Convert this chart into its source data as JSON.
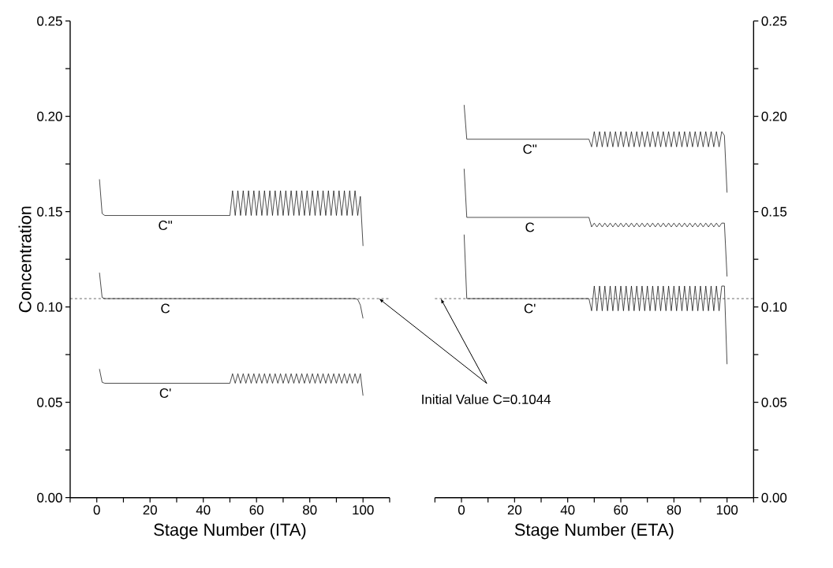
{
  "chart_data": [
    {
      "type": "line",
      "xlabel": "Stage Number (ITA)",
      "ylabel": "Concentration",
      "xlim": [
        -10,
        110
      ],
      "xticks": [
        {
          "value": -10,
          "label": null
        },
        0,
        {
          "value": 10,
          "label": null
        },
        20,
        {
          "value": 30,
          "label": null
        },
        40,
        {
          "value": 50,
          "label": null
        },
        60,
        {
          "value": 70,
          "label": null
        },
        80,
        {
          "value": 90,
          "label": null
        },
        100,
        {
          "value": 110,
          "label": null
        }
      ],
      "ylim": [
        0,
        0.25
      ],
      "yticks": [
        {
          "value": 0,
          "label": "0.00"
        },
        {
          "value": 0.025,
          "label": null
        },
        {
          "value": 0.05,
          "label": "0.05"
        },
        {
          "value": 0.075,
          "label": null
        },
        {
          "value": 0.1,
          "label": "0.10"
        },
        {
          "value": 0.125,
          "label": null
        },
        {
          "value": 0.15,
          "label": "0.15"
        },
        {
          "value": 0.175,
          "label": null
        },
        {
          "value": 0.2,
          "label": "0.20"
        },
        {
          "value": 0.225,
          "label": null
        },
        {
          "value": 0.25,
          "label": "0.25"
        }
      ],
      "series": [
        {
          "name": "C\"",
          "color": "#000000",
          "x": [
            1,
            2,
            3,
            50,
            51,
            52,
            53,
            54,
            55,
            56,
            57,
            58,
            59,
            60,
            61,
            62,
            63,
            64,
            65,
            66,
            67,
            68,
            69,
            70,
            71,
            72,
            73,
            74,
            75,
            76,
            77,
            78,
            79,
            80,
            81,
            82,
            83,
            84,
            85,
            86,
            87,
            88,
            89,
            90,
            91,
            92,
            93,
            94,
            95,
            96,
            97,
            98,
            99,
            100
          ],
          "values": [
            0.167,
            0.149,
            0.148,
            0.148,
            0.161,
            0.148,
            0.161,
            0.148,
            0.161,
            0.148,
            0.161,
            0.148,
            0.161,
            0.148,
            0.161,
            0.148,
            0.161,
            0.148,
            0.161,
            0.148,
            0.161,
            0.148,
            0.161,
            0.148,
            0.161,
            0.148,
            0.161,
            0.148,
            0.161,
            0.148,
            0.161,
            0.148,
            0.161,
            0.148,
            0.161,
            0.148,
            0.161,
            0.148,
            0.161,
            0.148,
            0.161,
            0.148,
            0.161,
            0.148,
            0.161,
            0.148,
            0.161,
            0.148,
            0.161,
            0.148,
            0.161,
            0.148,
            0.158,
            0.132
          ]
        },
        {
          "name": "C",
          "color": "#000000",
          "x": [
            1,
            2,
            3,
            97,
            98,
            99,
            100
          ],
          "values": [
            0.118,
            0.105,
            0.1044,
            0.1044,
            0.104,
            0.101,
            0.094
          ]
        },
        {
          "name": "C'",
          "color": "#000000",
          "x": [
            1,
            2,
            3,
            50,
            51,
            52,
            53,
            54,
            55,
            56,
            57,
            58,
            59,
            60,
            61,
            62,
            63,
            64,
            65,
            66,
            67,
            68,
            69,
            70,
            71,
            72,
            73,
            74,
            75,
            76,
            77,
            78,
            79,
            80,
            81,
            82,
            83,
            84,
            85,
            86,
            87,
            88,
            89,
            90,
            91,
            92,
            93,
            94,
            95,
            96,
            97,
            98,
            99,
            100
          ],
          "values": [
            0.0675,
            0.0605,
            0.06,
            0.06,
            0.065,
            0.06,
            0.065,
            0.06,
            0.065,
            0.06,
            0.065,
            0.06,
            0.065,
            0.06,
            0.065,
            0.06,
            0.065,
            0.06,
            0.065,
            0.06,
            0.065,
            0.06,
            0.065,
            0.06,
            0.065,
            0.06,
            0.065,
            0.06,
            0.065,
            0.06,
            0.065,
            0.06,
            0.065,
            0.06,
            0.065,
            0.06,
            0.065,
            0.06,
            0.065,
            0.06,
            0.065,
            0.06,
            0.065,
            0.06,
            0.065,
            0.06,
            0.065,
            0.06,
            0.065,
            0.06,
            0.065,
            0.06,
            0.065,
            0.0535
          ]
        }
      ],
      "ref_lines": [
        {
          "axis": "y",
          "value": 0.1044,
          "line_style": "dashed"
        }
      ],
      "annotations": [
        {
          "text": "Initial Value C=0.1044",
          "x": 106,
          "y": 0.1044
        }
      ]
    },
    {
      "type": "line",
      "xlabel": "Stage Number (ETA)",
      "xlim": [
        -10,
        110
      ],
      "xticks": [
        {
          "value": -10,
          "label": null
        },
        0,
        {
          "value": 10,
          "label": null
        },
        20,
        {
          "value": 30,
          "label": null
        },
        40,
        {
          "value": 50,
          "label": null
        },
        60,
        {
          "value": 70,
          "label": null
        },
        80,
        {
          "value": 90,
          "label": null
        },
        100,
        {
          "value": 110,
          "label": null
        }
      ],
      "y2lim": [
        0,
        0.25
      ],
      "y2ticks": [
        {
          "value": 0,
          "label": "0.00"
        },
        {
          "value": 0.025,
          "label": null
        },
        {
          "value": 0.05,
          "label": "0.05"
        },
        {
          "value": 0.075,
          "label": null
        },
        {
          "value": 0.1,
          "label": "0.10"
        },
        {
          "value": 0.125,
          "label": null
        },
        {
          "value": 0.15,
          "label": "0.15"
        },
        {
          "value": 0.175,
          "label": null
        },
        {
          "value": 0.2,
          "label": "0.20"
        },
        {
          "value": 0.225,
          "label": null
        },
        {
          "value": 0.25,
          "label": "0.25"
        }
      ],
      "series": [
        {
          "name": "C\"",
          "color": "#000000",
          "axis": "y2",
          "x": [
            1,
            2,
            48,
            49,
            50,
            51,
            52,
            53,
            54,
            55,
            56,
            57,
            58,
            59,
            60,
            61,
            62,
            63,
            64,
            65,
            66,
            67,
            68,
            69,
            70,
            71,
            72,
            73,
            74,
            75,
            76,
            77,
            78,
            79,
            80,
            81,
            82,
            83,
            84,
            85,
            86,
            87,
            88,
            89,
            90,
            91,
            92,
            93,
            94,
            95,
            96,
            97,
            98,
            99,
            100
          ],
          "values": [
            0.206,
            0.188,
            0.188,
            0.184,
            0.192,
            0.184,
            0.192,
            0.184,
            0.192,
            0.184,
            0.192,
            0.184,
            0.192,
            0.184,
            0.192,
            0.184,
            0.192,
            0.184,
            0.192,
            0.184,
            0.192,
            0.184,
            0.192,
            0.184,
            0.192,
            0.184,
            0.192,
            0.184,
            0.192,
            0.184,
            0.192,
            0.184,
            0.192,
            0.184,
            0.192,
            0.184,
            0.192,
            0.184,
            0.192,
            0.184,
            0.192,
            0.184,
            0.192,
            0.184,
            0.192,
            0.184,
            0.192,
            0.184,
            0.192,
            0.184,
            0.192,
            0.184,
            0.192,
            0.19,
            0.16
          ]
        },
        {
          "name": "C",
          "color": "#000000",
          "axis": "y2",
          "x": [
            1,
            2,
            48,
            49,
            50,
            51,
            52,
            53,
            54,
            55,
            56,
            57,
            58,
            59,
            60,
            61,
            62,
            63,
            64,
            65,
            66,
            67,
            68,
            69,
            70,
            71,
            72,
            73,
            74,
            75,
            76,
            77,
            78,
            79,
            80,
            81,
            82,
            83,
            84,
            85,
            86,
            87,
            88,
            89,
            90,
            91,
            92,
            93,
            94,
            95,
            96,
            97,
            98,
            99,
            100
          ],
          "values": [
            0.1725,
            0.147,
            0.147,
            0.142,
            0.144,
            0.142,
            0.144,
            0.142,
            0.144,
            0.142,
            0.144,
            0.142,
            0.144,
            0.142,
            0.144,
            0.142,
            0.144,
            0.142,
            0.144,
            0.142,
            0.144,
            0.142,
            0.144,
            0.142,
            0.144,
            0.142,
            0.144,
            0.142,
            0.144,
            0.142,
            0.144,
            0.142,
            0.144,
            0.142,
            0.144,
            0.142,
            0.144,
            0.142,
            0.144,
            0.142,
            0.144,
            0.142,
            0.144,
            0.142,
            0.144,
            0.142,
            0.144,
            0.142,
            0.144,
            0.142,
            0.144,
            0.142,
            0.144,
            0.144,
            0.116
          ]
        },
        {
          "name": "C'",
          "color": "#000000",
          "axis": "y2",
          "x": [
            1,
            2,
            48,
            49,
            50,
            51,
            52,
            53,
            54,
            55,
            56,
            57,
            58,
            59,
            60,
            61,
            62,
            63,
            64,
            65,
            66,
            67,
            68,
            69,
            70,
            71,
            72,
            73,
            74,
            75,
            76,
            77,
            78,
            79,
            80,
            81,
            82,
            83,
            84,
            85,
            86,
            87,
            88,
            89,
            90,
            91,
            92,
            93,
            94,
            95,
            96,
            97,
            98,
            99,
            100
          ],
          "values": [
            0.138,
            0.1044,
            0.1044,
            0.098,
            0.111,
            0.098,
            0.111,
            0.098,
            0.111,
            0.098,
            0.111,
            0.098,
            0.111,
            0.098,
            0.111,
            0.098,
            0.111,
            0.098,
            0.111,
            0.098,
            0.111,
            0.098,
            0.111,
            0.098,
            0.111,
            0.098,
            0.111,
            0.098,
            0.111,
            0.098,
            0.111,
            0.098,
            0.111,
            0.098,
            0.111,
            0.098,
            0.111,
            0.098,
            0.111,
            0.098,
            0.111,
            0.098,
            0.111,
            0.098,
            0.111,
            0.098,
            0.111,
            0.098,
            0.111,
            0.098,
            0.111,
            0.098,
            0.111,
            0.111,
            0.07
          ]
        }
      ],
      "ref_lines": [
        {
          "axis": "y2",
          "value": 0.1044,
          "line_style": "dashed"
        }
      ]
    }
  ]
}
